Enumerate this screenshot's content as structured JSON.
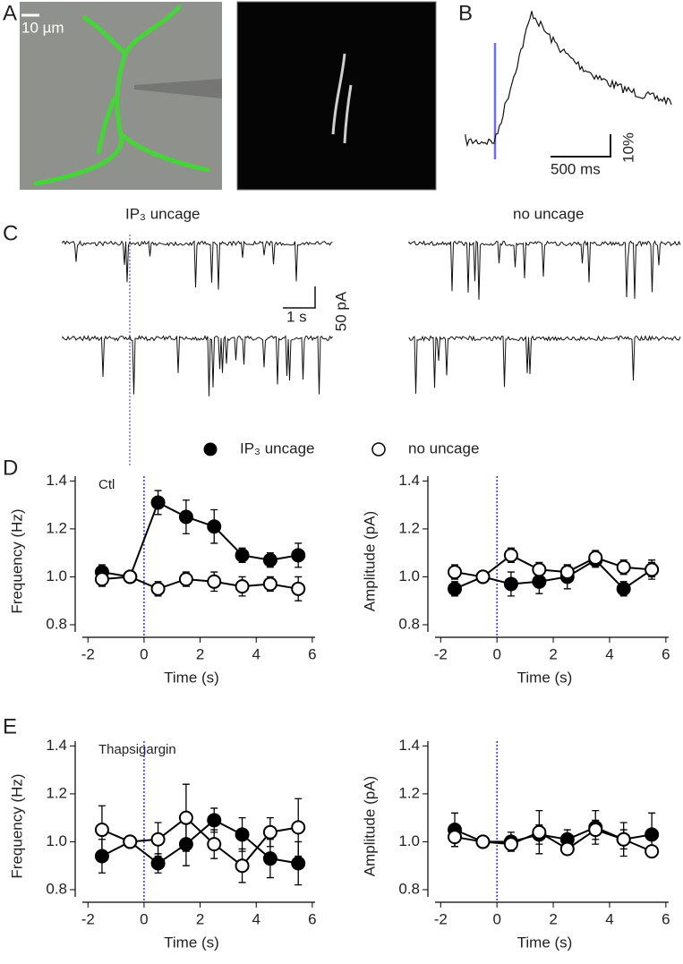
{
  "figure": {
    "panel_a": {
      "label": "A",
      "scale": "10 µm"
    },
    "panel_b": {
      "label": "B",
      "time_scale": "500 ms",
      "amp_scale": "10%"
    },
    "panel_c": {
      "label": "C",
      "left_title": "IP₃ uncage",
      "right_title": "no uncage",
      "time_scale": "1 s",
      "amp_scale": "50 pA"
    },
    "panel_d": {
      "label": "D"
    },
    "panel_e": {
      "label": "E"
    }
  },
  "chart_data": [
    {
      "type": "line",
      "annotation": "Ctl",
      "ylabel": "Frequency (Hz)",
      "xlabel": "Time (s)",
      "vline": 0,
      "xlim": [
        -2.2,
        6.1
      ],
      "ylim": [
        0.77,
        1.42
      ],
      "xticks": [
        -2,
        0,
        2,
        4,
        6
      ],
      "yticks": [
        0.8,
        {
          "value": 1,
          "label": "1.0"
        },
        1.2,
        1.4
      ],
      "x": [
        -1.5,
        -0.5,
        0.5,
        1.5,
        2.5,
        3.5,
        4.5,
        5.5
      ],
      "series": [
        {
          "name": "IP₃ uncage",
          "color": "#000000",
          "marker_fill": "#000000",
          "values": [
            1.02,
            1.0,
            1.31,
            1.25,
            1.21,
            1.09,
            1.07,
            1.09
          ],
          "errors": [
            0.03,
            0.01,
            0.05,
            0.07,
            0.07,
            0.03,
            0.03,
            0.05
          ]
        },
        {
          "name": "no uncage",
          "color": "#000000",
          "marker_fill": "#ffffff",
          "values": [
            0.99,
            1.0,
            0.95,
            0.99,
            0.98,
            0.96,
            0.97,
            0.95
          ],
          "errors": [
            0.03,
            0.01,
            0.03,
            0.03,
            0.04,
            0.04,
            0.03,
            0.05
          ]
        }
      ]
    },
    {
      "type": "line",
      "ylabel": "Amplitude (pA)",
      "xlabel": "Time (s)",
      "vline": 0,
      "xlim": [
        -2.2,
        6.1
      ],
      "ylim": [
        0.77,
        1.42
      ],
      "xticks": [
        -2,
        0,
        2,
        4,
        6
      ],
      "yticks": [
        0.8,
        {
          "value": 1,
          "label": "1.0"
        },
        1.2,
        1.4
      ],
      "x": [
        -1.5,
        -0.5,
        0.5,
        1.5,
        2.5,
        3.5,
        4.5,
        5.5
      ],
      "series": [
        {
          "color": "#000000",
          "marker_fill": "#000000",
          "values": [
            0.95,
            1.0,
            0.97,
            0.98,
            1.0,
            1.07,
            0.95,
            1.03
          ],
          "errors": [
            0.03,
            0.01,
            0.05,
            0.05,
            0.05,
            0.03,
            0.03,
            0.04
          ]
        },
        {
          "color": "#000000",
          "marker_fill": "#ffffff",
          "values": [
            1.02,
            1.0,
            1.09,
            1.03,
            1.02,
            1.08,
            1.04,
            1.03
          ],
          "errors": [
            0.03,
            0.01,
            0.03,
            0.03,
            0.03,
            0.03,
            0.03,
            0.03
          ]
        }
      ]
    },
    {
      "type": "line",
      "annotation": "Thapsigargin",
      "ylabel": "Frequency (Hz)",
      "xlabel": "Time (s)",
      "vline": 0,
      "xlim": [
        -2.2,
        6.1
      ],
      "ylim": [
        0.77,
        1.42
      ],
      "xticks": [
        -2,
        0,
        2,
        4,
        6
      ],
      "yticks": [
        0.8,
        {
          "value": 1,
          "label": "1.0"
        },
        1.2,
        1.4
      ],
      "x": [
        -1.5,
        -0.5,
        0.5,
        1.5,
        2.5,
        3.5,
        4.5,
        5.5
      ],
      "series": [
        {
          "color": "#000000",
          "marker_fill": "#000000",
          "values": [
            0.94,
            1.0,
            0.91,
            0.99,
            1.09,
            1.03,
            0.93,
            0.91
          ],
          "errors": [
            0.07,
            0.01,
            0.04,
            0.09,
            0.05,
            0.07,
            0.08,
            0.09
          ]
        },
        {
          "color": "#000000",
          "marker_fill": "#ffffff",
          "values": [
            1.05,
            1.0,
            1.01,
            1.1,
            0.99,
            0.9,
            1.04,
            1.06
          ],
          "errors": [
            0.1,
            0.01,
            0.07,
            0.14,
            0.06,
            0.07,
            0.06,
            0.12
          ]
        }
      ]
    },
    {
      "type": "line",
      "ylabel": "Amplitude (pA)",
      "xlabel": "Time (s)",
      "vline": 0,
      "xlim": [
        -2.2,
        6.1
      ],
      "ylim": [
        0.77,
        1.42
      ],
      "xticks": [
        -2,
        0,
        2,
        4,
        6
      ],
      "yticks": [
        0.8,
        {
          "value": 1,
          "label": "1.0"
        },
        1.2,
        1.4
      ],
      "x": [
        -1.5,
        -0.5,
        0.5,
        1.5,
        2.5,
        3.5,
        4.5,
        5.5
      ],
      "series": [
        {
          "color": "#000000",
          "marker_fill": "#000000",
          "values": [
            1.05,
            1.0,
            1.0,
            1.03,
            1.01,
            1.06,
            1.01,
            1.03
          ],
          "errors": [
            0.07,
            0.01,
            0.04,
            0.04,
            0.04,
            0.07,
            0.04,
            0.09
          ]
        },
        {
          "color": "#000000",
          "marker_fill": "#ffffff",
          "values": [
            1.02,
            1.0,
            0.99,
            1.04,
            0.97,
            1.05,
            1.01,
            0.96
          ],
          "errors": [
            0.04,
            0.01,
            0.02,
            0.09,
            0.02,
            0.04,
            0.07,
            0.02
          ]
        }
      ]
    }
  ]
}
